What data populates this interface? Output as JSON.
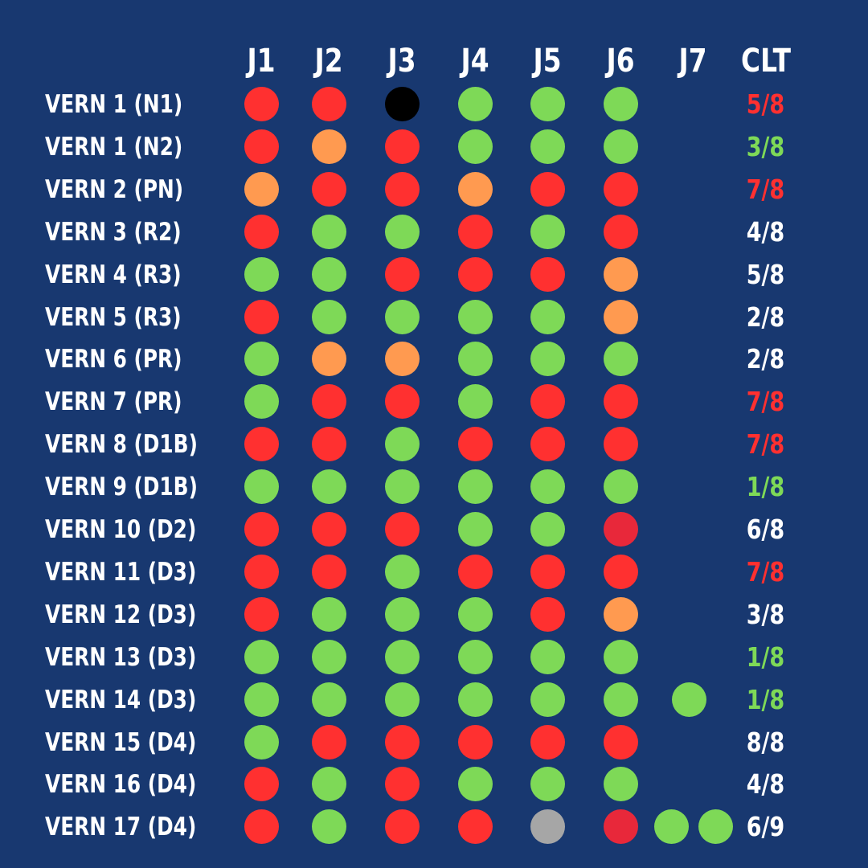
{
  "colors": {
    "background": "#183870",
    "red": "#ff3030",
    "dark_red": "#e8283a",
    "green": "#7ed957",
    "orange": "#ff9a50",
    "black": "#000000",
    "grey": "#a6a6a6",
    "white": "#ffffff"
  },
  "headers": [
    "J1",
    "J2",
    "J3",
    "J4",
    "J5",
    "J6",
    "J7",
    "CLT"
  ],
  "rows": [
    {
      "label": "VERN 1 (N1)",
      "dots": [
        "red",
        "red",
        "black",
        "green",
        "green",
        "green"
      ],
      "extra": [],
      "score": "5/8",
      "score_color": "red"
    },
    {
      "label": "VERN 1 (N2)",
      "dots": [
        "red",
        "orange",
        "red",
        "green",
        "green",
        "green"
      ],
      "extra": [],
      "score": "3/8",
      "score_color": "green"
    },
    {
      "label": "VERN 2 (PN)",
      "dots": [
        "orange",
        "red",
        "red",
        "orange",
        "red",
        "red"
      ],
      "extra": [],
      "score": "7/8",
      "score_color": "red"
    },
    {
      "label": "VERN 3 (R2)",
      "dots": [
        "red",
        "green",
        "green",
        "red",
        "green",
        "red"
      ],
      "extra": [],
      "score": "4/8",
      "score_color": "white"
    },
    {
      "label": "VERN 4 (R3)",
      "dots": [
        "green",
        "green",
        "red",
        "red",
        "red",
        "orange"
      ],
      "extra": [],
      "score": "5/8",
      "score_color": "white"
    },
    {
      "label": "VERN 5 (R3)",
      "dots": [
        "red",
        "green",
        "green",
        "green",
        "green",
        "orange"
      ],
      "extra": [],
      "score": "2/8",
      "score_color": "white"
    },
    {
      "label": "VERN 6 (PR)",
      "dots": [
        "green",
        "orange",
        "orange",
        "green",
        "green",
        "green"
      ],
      "extra": [],
      "score": "2/8",
      "score_color": "white"
    },
    {
      "label": "VERN 7 (PR)",
      "dots": [
        "green",
        "red",
        "red",
        "green",
        "red",
        "red"
      ],
      "extra": [],
      "score": "7/8",
      "score_color": "red"
    },
    {
      "label": "VERN 8 (D1B)",
      "dots": [
        "red",
        "red",
        "green",
        "red",
        "red",
        "red"
      ],
      "extra": [],
      "score": "7/8",
      "score_color": "red"
    },
    {
      "label": "VERN 9 (D1B)",
      "dots": [
        "green",
        "green",
        "green",
        "green",
        "green",
        "green"
      ],
      "extra": [],
      "score": "1/8",
      "score_color": "green"
    },
    {
      "label": "VERN 10 (D2)",
      "dots": [
        "red",
        "red",
        "red",
        "green",
        "green",
        "dark_red"
      ],
      "extra": [],
      "score": "6/8",
      "score_color": "white"
    },
    {
      "label": "VERN 11 (D3)",
      "dots": [
        "red",
        "red",
        "green",
        "red",
        "red",
        "red"
      ],
      "extra": [],
      "score": "7/8",
      "score_color": "red"
    },
    {
      "label": "VERN 12 (D3)",
      "dots": [
        "red",
        "green",
        "green",
        "green",
        "red",
        "orange"
      ],
      "extra": [],
      "score": "3/8",
      "score_color": "white"
    },
    {
      "label": "VERN 13 (D3)",
      "dots": [
        "green",
        "green",
        "green",
        "green",
        "green",
        "green"
      ],
      "extra": [],
      "score": "1/8",
      "score_color": "green"
    },
    {
      "label": "VERN 14 (D3)",
      "dots": [
        "green",
        "green",
        "green",
        "green",
        "green",
        "green"
      ],
      "extra": [
        "green"
      ],
      "score": "1/8",
      "score_color": "green"
    },
    {
      "label": "VERN 15 (D4)",
      "dots": [
        "green",
        "red",
        "red",
        "red",
        "red",
        "red"
      ],
      "extra": [],
      "score": "8/8",
      "score_color": "white"
    },
    {
      "label": "VERN 16 (D4)",
      "dots": [
        "red",
        "green",
        "red",
        "green",
        "green",
        "green"
      ],
      "extra": [],
      "score": "4/8",
      "score_color": "white"
    },
    {
      "label": "VERN 17 (D4)",
      "dots": [
        "red",
        "green",
        "red",
        "red",
        "grey",
        "dark_red"
      ],
      "extra": [
        "green",
        "green"
      ],
      "score": "6/9",
      "score_color": "white"
    }
  ]
}
